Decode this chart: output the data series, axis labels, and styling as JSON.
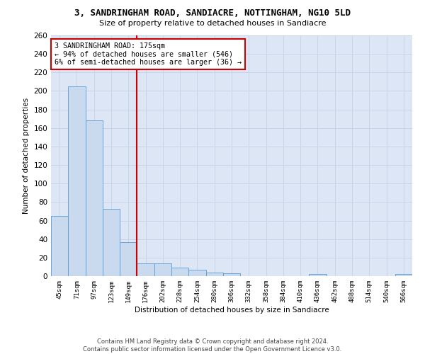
{
  "title": "3, SANDRINGHAM ROAD, SANDIACRE, NOTTINGHAM, NG10 5LD",
  "subtitle": "Size of property relative to detached houses in Sandiacre",
  "xlabel": "Distribution of detached houses by size in Sandiacre",
  "ylabel": "Number of detached properties",
  "bar_color": "#c9d9ee",
  "bar_edge_color": "#5b9bd5",
  "grid_color": "#c8d4e8",
  "background_color": "#dce6f5",
  "categories": [
    "45sqm",
    "71sqm",
    "97sqm",
    "123sqm",
    "149sqm",
    "176sqm",
    "202sqm",
    "228sqm",
    "254sqm",
    "280sqm",
    "306sqm",
    "332sqm",
    "358sqm",
    "384sqm",
    "410sqm",
    "436sqm",
    "462sqm",
    "488sqm",
    "514sqm",
    "540sqm",
    "566sqm"
  ],
  "values": [
    65,
    205,
    168,
    73,
    37,
    14,
    14,
    9,
    7,
    4,
    3,
    0,
    0,
    0,
    0,
    2,
    0,
    0,
    0,
    0,
    2
  ],
  "annotation_line1": "3 SANDRINGHAM ROAD: 175sqm",
  "annotation_line2": "← 94% of detached houses are smaller (546)",
  "annotation_line3": "6% of semi-detached houses are larger (36) →",
  "vline_position": 5,
  "ylim": [
    0,
    260
  ],
  "yticks": [
    0,
    20,
    40,
    60,
    80,
    100,
    120,
    140,
    160,
    180,
    200,
    220,
    240,
    260
  ],
  "annotation_box_color": "#ffffff",
  "annotation_box_edge": "#cc0000",
  "vline_color": "#cc0000",
  "footer_line1": "Contains HM Land Registry data © Crown copyright and database right 2024.",
  "footer_line2": "Contains public sector information licensed under the Open Government Licence v3.0."
}
